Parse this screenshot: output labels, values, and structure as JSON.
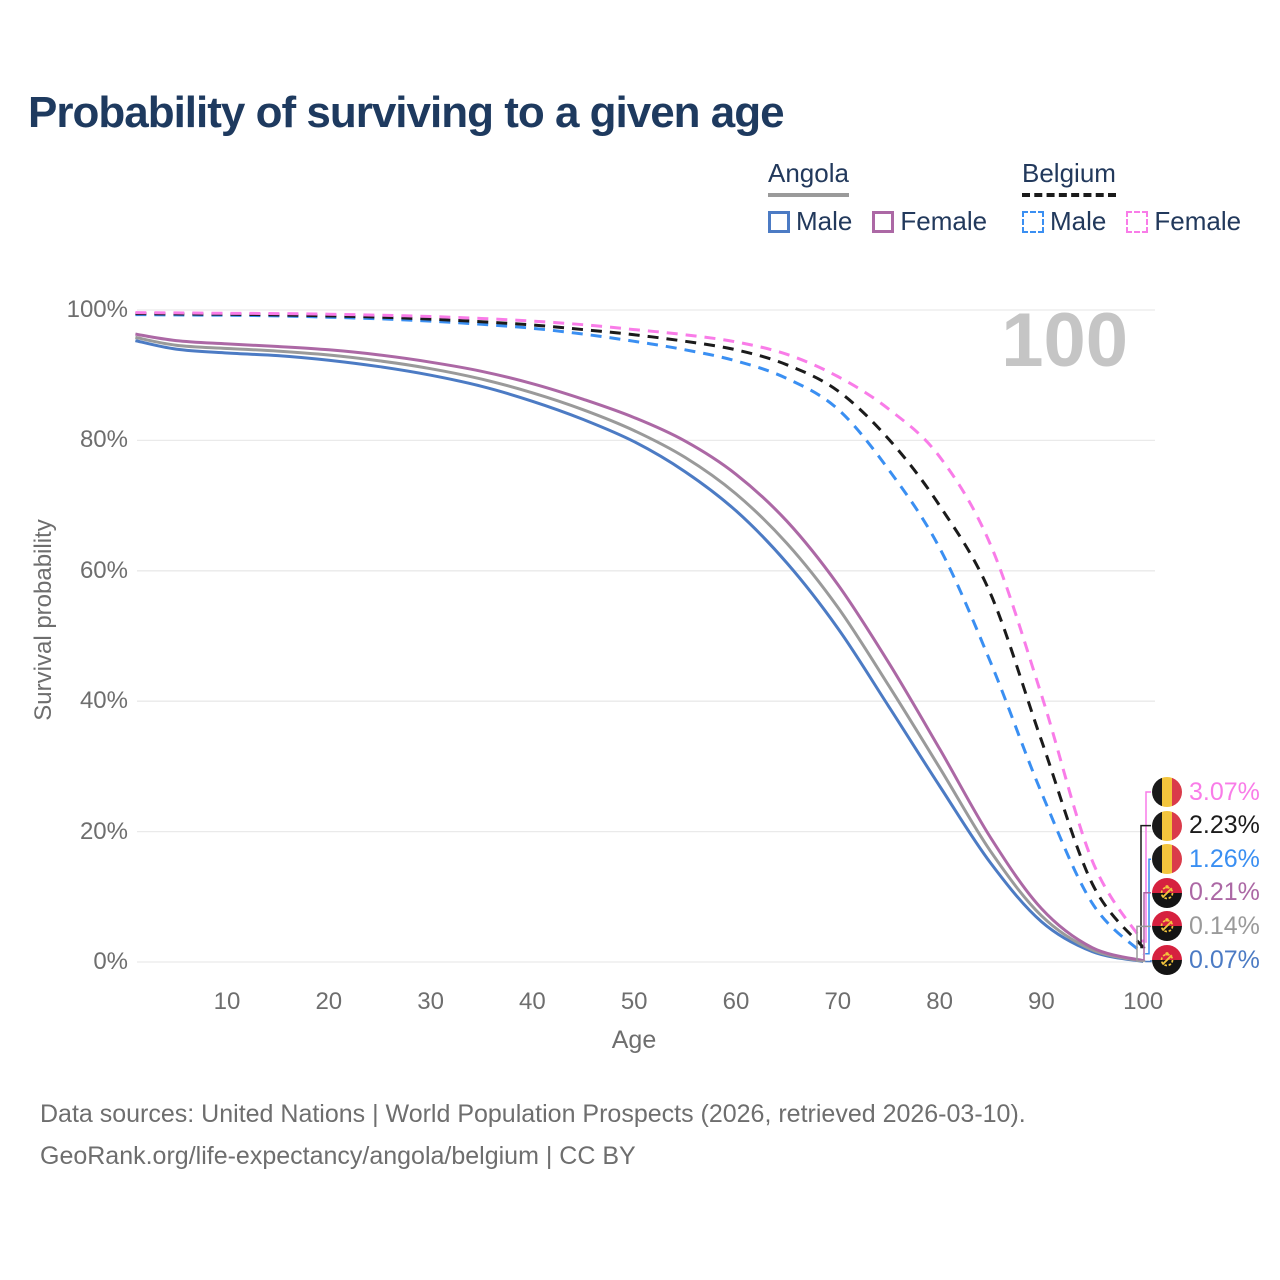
{
  "title": "Probability of surviving to a given age",
  "watermark": "100",
  "legend": {
    "groups": [
      {
        "label": "Angola",
        "underline_style": "solid",
        "underline_color": "#9a9a9a",
        "items": [
          {
            "label": "Male",
            "color": "#4c7bc4",
            "line_style": "solid"
          },
          {
            "label": "Female",
            "color": "#ac68a5",
            "line_style": "solid"
          }
        ]
      },
      {
        "label": "Belgium",
        "underline_style": "dashed",
        "underline_color": "#1b1b1b",
        "items": [
          {
            "label": "Male",
            "color": "#3a8ff2",
            "line_style": "dashed"
          },
          {
            "label": "Female",
            "color": "#f97ce8",
            "line_style": "dashed"
          }
        ]
      }
    ]
  },
  "chart_data": {
    "type": "line",
    "title": "Probability of surviving to a given age",
    "xlabel": "Age",
    "ylabel": "Survival probability",
    "xlim": [
      1,
      100
    ],
    "ylim": [
      0,
      100
    ],
    "x_ticks": [
      10,
      20,
      30,
      40,
      50,
      60,
      70,
      80,
      90,
      100
    ],
    "y_ticks": [
      0,
      20,
      40,
      60,
      80,
      100
    ],
    "y_tick_suffix": "%",
    "grid": "horizontal",
    "legend_position": "top-right",
    "ages": [
      1,
      5,
      10,
      15,
      20,
      25,
      30,
      35,
      40,
      45,
      50,
      55,
      60,
      65,
      70,
      75,
      80,
      85,
      90,
      95,
      100
    ],
    "series": [
      {
        "name": "Angola Male",
        "country": "Angola",
        "sex": "Male",
        "line_style": "solid",
        "color": "#4c7bc4",
        "flag": "angola",
        "end_label": "0.07%",
        "values": [
          95.3,
          94.0,
          93.4,
          93.0,
          92.3,
          91.3,
          90.0,
          88.3,
          86.0,
          83.2,
          79.8,
          75.2,
          69.2,
          61.2,
          51.2,
          39.2,
          27.0,
          15.2,
          6.2,
          1.6,
          0.07
        ]
      },
      {
        "name": "Angola Both sexes",
        "country": "Angola",
        "sex": "Both",
        "line_style": "solid",
        "color": "#9a9a9a",
        "flag": "angola",
        "end_label": "0.14%",
        "values": [
          95.8,
          94.6,
          94.1,
          93.7,
          93.1,
          92.2,
          91.0,
          89.4,
          87.3,
          84.7,
          81.5,
          77.4,
          71.8,
          64.2,
          54.4,
          42.4,
          29.8,
          17.0,
          7.1,
          1.85,
          0.14
        ]
      },
      {
        "name": "Angola Female",
        "country": "Angola",
        "sex": "Female",
        "line_style": "solid",
        "color": "#ac68a5",
        "flag": "angola",
        "end_label": "0.21%",
        "values": [
          96.3,
          95.3,
          94.8,
          94.4,
          93.9,
          93.1,
          92.0,
          90.6,
          88.7,
          86.3,
          83.5,
          79.9,
          74.8,
          67.6,
          57.9,
          45.9,
          32.7,
          19.1,
          8.2,
          2.2,
          0.21
        ]
      },
      {
        "name": "Belgium Male",
        "country": "Belgium",
        "sex": "Male",
        "line_style": "dashed",
        "color": "#3a8ff2",
        "flag": "belgium",
        "end_label": "1.26%",
        "values": [
          99.3,
          99.25,
          99.2,
          99.1,
          98.9,
          98.65,
          98.3,
          97.8,
          97.2,
          96.3,
          95.2,
          93.9,
          92.2,
          89.5,
          84.8,
          75.5,
          63.5,
          46.0,
          26.0,
          9.0,
          1.26
        ]
      },
      {
        "name": "Belgium Both sexes",
        "country": "Belgium",
        "sex": "Both",
        "line_style": "dashed",
        "color": "#1b1b1b",
        "flag": "belgium",
        "end_label": "2.23%",
        "values": [
          99.45,
          99.4,
          99.35,
          99.25,
          99.1,
          98.9,
          98.6,
          98.2,
          97.7,
          97.0,
          96.2,
          95.2,
          93.9,
          91.6,
          87.6,
          80.2,
          70.0,
          56.5,
          34.0,
          12.0,
          2.23
        ]
      },
      {
        "name": "Belgium Female",
        "country": "Belgium",
        "sex": "Female",
        "line_style": "dashed",
        "color": "#f97ce8",
        "flag": "belgium",
        "end_label": "3.07%",
        "values": [
          99.6,
          99.55,
          99.5,
          99.45,
          99.35,
          99.2,
          99.0,
          98.7,
          98.3,
          97.75,
          97.0,
          96.2,
          95.1,
          93.2,
          89.8,
          84.8,
          77.5,
          64.0,
          41.0,
          15.5,
          3.07
        ]
      }
    ]
  },
  "flag_colors": {
    "belgium": {
      "black": "#1a1a1a",
      "yellow": "#f3c53d",
      "red": "#da3b4a"
    },
    "angola": {
      "red": "#d6213f",
      "black": "#141414",
      "yellow": "#f3c53d"
    }
  },
  "footer": {
    "line1": "Data sources: United Nations | World Population Prospects (2026, retrieved 2026-03-10).",
    "line2": "GeoRank.org/life-expectancy/angola/belgium | CC BY"
  }
}
